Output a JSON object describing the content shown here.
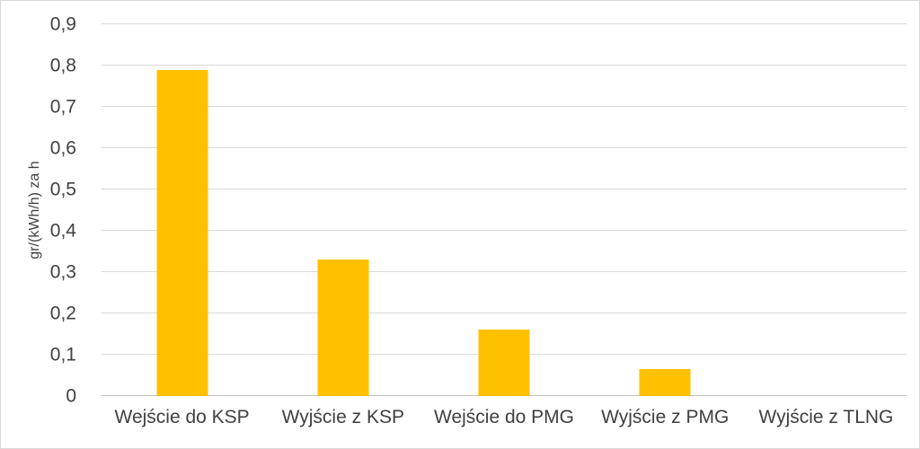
{
  "chart_data": {
    "type": "bar",
    "title": "",
    "categories": [
      "Wejście do KSP",
      "Wyjście z KSP",
      "Wejście do PMG",
      "Wyjście z PMG",
      "Wyjście z TLNG"
    ],
    "values": [
      0.79,
      0.33,
      0.16,
      0.065,
      0
    ],
    "xlabel": "",
    "ylabel": "gr/(kWh/h) za h",
    "ylim": [
      0,
      0.9
    ],
    "ytick_step": 0.1,
    "ytick_labels": [
      "0",
      "0,1",
      "0,2",
      "0,3",
      "0,4",
      "0,5",
      "0,6",
      "0,7",
      "0,8",
      "0,9"
    ],
    "grid": true,
    "legend": "none"
  },
  "colors": {
    "bar": "#FFC000",
    "grid": "#D9D9D9",
    "axis": "#BFBFBF",
    "text": "#404040",
    "background": "#FFFFFF"
  }
}
